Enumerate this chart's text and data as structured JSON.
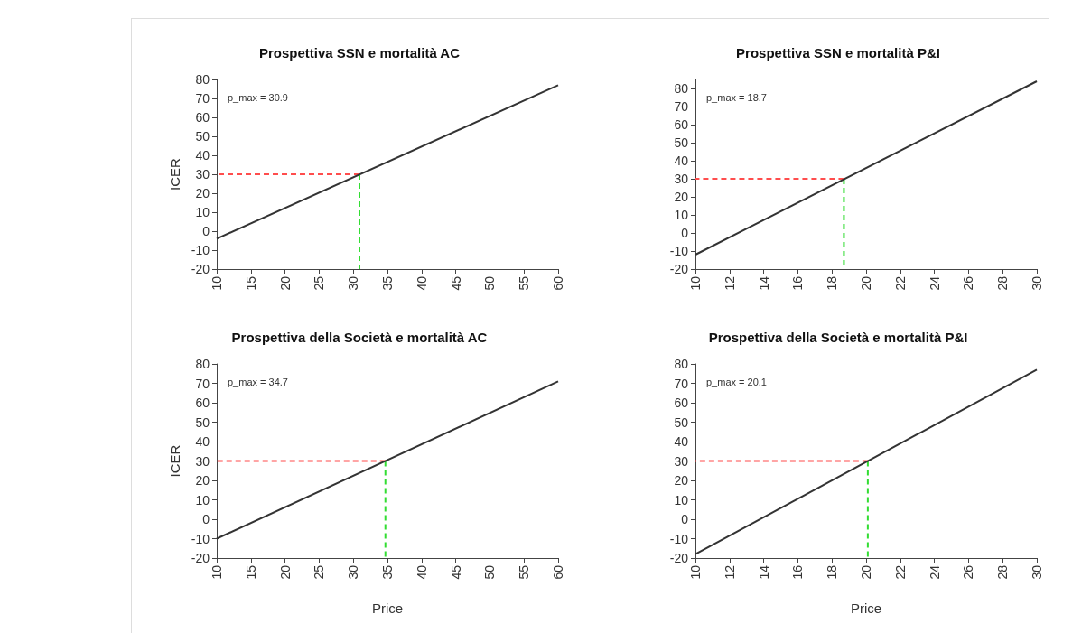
{
  "chart_data": [
    {
      "type": "line",
      "title": "Prospettiva SSN e mortalità AC",
      "ylabel": "ICER",
      "annotations": [
        "p_max = 30.9"
      ],
      "xlim": [
        10,
        60
      ],
      "xticks": [
        10,
        15,
        20,
        25,
        30,
        35,
        40,
        45,
        50,
        55,
        60
      ],
      "ylim": [
        -20,
        80
      ],
      "yticks": [
        -20,
        -10,
        0,
        10,
        20,
        30,
        40,
        50,
        60,
        70,
        80
      ],
      "series": [
        {
          "color": "#333333",
          "x": [
            10,
            60
          ],
          "values": [
            -4,
            77
          ]
        },
        {
          "color": "#ff4d4d",
          "line_style": "dashed",
          "x": [
            30.9,
            10
          ],
          "values": [
            30,
            30
          ]
        },
        {
          "color": "#33dd33",
          "line_style": "dashed",
          "x": [
            30.9,
            30.9
          ],
          "values": [
            30,
            -20
          ]
        }
      ]
    },
    {
      "type": "line",
      "title": "Prospettiva SSN e mortalità P&I",
      "annotations": [
        "p_max = 18.7"
      ],
      "xlim": [
        10,
        30
      ],
      "xticks": [
        10,
        12,
        14,
        16,
        18,
        20,
        22,
        24,
        26,
        28,
        30
      ],
      "ylim": [
        -20,
        85
      ],
      "yticks": [
        -20,
        -10,
        0,
        10,
        20,
        30,
        40,
        50,
        60,
        70,
        80
      ],
      "series": [
        {
          "color": "#333333",
          "x": [
            10,
            30
          ],
          "values": [
            -12,
            84
          ]
        },
        {
          "color": "#ff4d4d",
          "line_style": "dashed",
          "x": [
            18.7,
            10
          ],
          "values": [
            30,
            30
          ]
        },
        {
          "color": "#33dd33",
          "line_style": "dashed",
          "x": [
            18.7,
            18.7
          ],
          "values": [
            30,
            -20
          ]
        }
      ]
    },
    {
      "type": "line",
      "title": "Prospettiva della Società e mortalità AC",
      "ylabel": "ICER",
      "xlabel": "Price",
      "annotations": [
        "p_max = 34.7"
      ],
      "xlim": [
        10,
        60
      ],
      "xticks": [
        10,
        15,
        20,
        25,
        30,
        35,
        40,
        45,
        50,
        55,
        60
      ],
      "ylim": [
        -20,
        80
      ],
      "yticks": [
        -20,
        -10,
        0,
        10,
        20,
        30,
        40,
        50,
        60,
        70,
        80
      ],
      "series": [
        {
          "color": "#333333",
          "x": [
            10,
            60
          ],
          "values": [
            -10,
            71
          ]
        },
        {
          "color": "#ff4d4d",
          "line_style": "dashed",
          "x": [
            34.7,
            10
          ],
          "values": [
            30,
            30
          ]
        },
        {
          "color": "#33dd33",
          "line_style": "dashed",
          "x": [
            34.7,
            34.7
          ],
          "values": [
            30,
            -20
          ]
        }
      ]
    },
    {
      "type": "line",
      "title": "Prospettiva della Società e mortalità P&I",
      "xlabel": "Price",
      "annotations": [
        "p_max = 20.1"
      ],
      "xlim": [
        10,
        30
      ],
      "xticks": [
        10,
        12,
        14,
        16,
        18,
        20,
        22,
        24,
        26,
        28,
        30
      ],
      "ylim": [
        -20,
        80
      ],
      "yticks": [
        -20,
        -10,
        0,
        10,
        20,
        30,
        40,
        50,
        60,
        70,
        80
      ],
      "series": [
        {
          "color": "#333333",
          "x": [
            10,
            30
          ],
          "values": [
            -18,
            77
          ]
        },
        {
          "color": "#ff4d4d",
          "line_style": "dashed",
          "x": [
            20.1,
            10
          ],
          "values": [
            30,
            30
          ]
        },
        {
          "color": "#33dd33",
          "line_style": "dashed",
          "x": [
            20.1,
            20.1
          ],
          "values": [
            30,
            -20
          ]
        }
      ]
    }
  ]
}
